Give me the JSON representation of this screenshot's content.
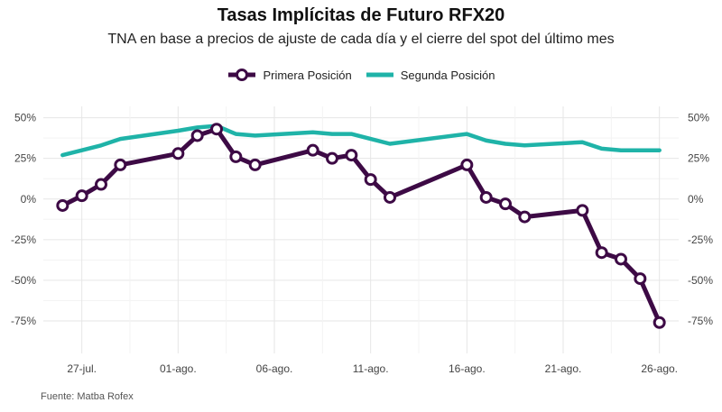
{
  "chart_data": {
    "type": "line",
    "title": "Tasas Implícitas de Futuro RFX20",
    "subtitle": "TNA en base a precios de ajuste de cada día y el cierre del spot del último mes",
    "source": "Fuente: Matba Rofex",
    "x_tick_labels": [
      "27-jul.",
      "01-ago.",
      "06-ago.",
      "11-ago.",
      "16-ago.",
      "21-ago.",
      "26-ago."
    ],
    "x_tick_days": [
      27,
      32,
      37,
      42,
      47,
      52,
      57
    ],
    "xlim": [
      25,
      58
    ],
    "ylim": [
      -95,
      57
    ],
    "y_ticks": [
      -75,
      -50,
      -25,
      0,
      25,
      50
    ],
    "y_tick_labels": [
      "-75%",
      "-50%",
      "-25%",
      "0%",
      "25%",
      "50%"
    ],
    "grid": true,
    "legend_position": "top",
    "series": [
      {
        "name": "Primera Posición",
        "color": "#3d0a45",
        "marker": "circle",
        "days": [
          26,
          27,
          28,
          29,
          32,
          33,
          34,
          35,
          36,
          39,
          40,
          41,
          42,
          43,
          47,
          48,
          49,
          50,
          53,
          54,
          55,
          56,
          57
        ],
        "values": [
          -4,
          2,
          9,
          21,
          28,
          39,
          43,
          26,
          21,
          30,
          25,
          27,
          12,
          1,
          21,
          1,
          -3,
          -11,
          -7,
          -33,
          -37,
          -49,
          -76
        ]
      },
      {
        "name": "Segunda Posición",
        "color": "#1fb3a8",
        "marker": "none",
        "days": [
          26,
          27,
          28,
          29,
          32,
          33,
          34,
          35,
          36,
          39,
          40,
          41,
          42,
          43,
          47,
          48,
          49,
          50,
          53,
          54,
          55,
          56,
          57
        ],
        "values": [
          27,
          30,
          33,
          37,
          42,
          44,
          45,
          40,
          39,
          41,
          40,
          40,
          37,
          34,
          40,
          36,
          34,
          33,
          35,
          31,
          30,
          30,
          30
        ]
      }
    ]
  }
}
